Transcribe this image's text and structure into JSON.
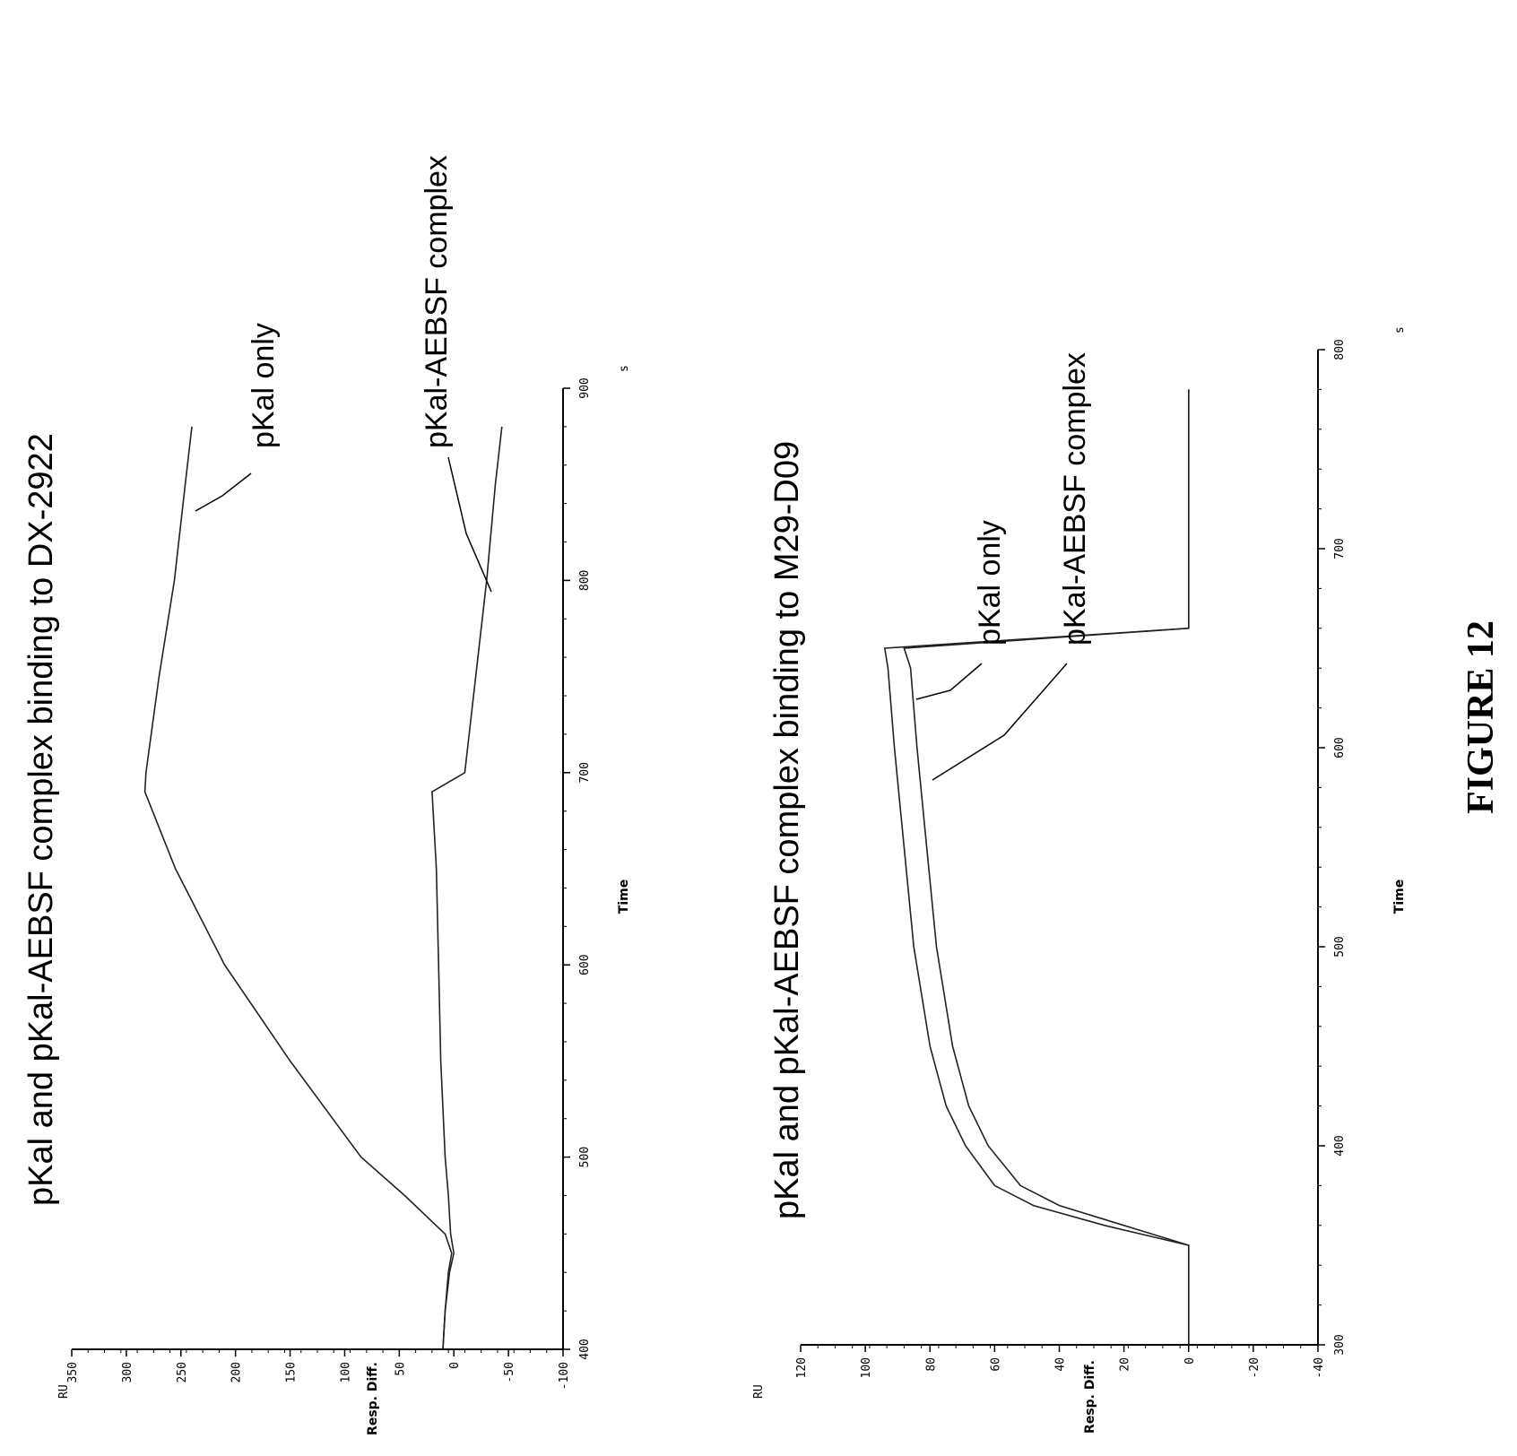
{
  "figure_label": "FIGURE 12",
  "chart_data": [
    {
      "type": "line",
      "title": "pKal and pKal-AEBSF complex binding to DX-2922",
      "xlabel": "Time",
      "x_unit": "s",
      "ylabel": "Resp. Diff.",
      "y_unit": "RU",
      "xlim": [
        400,
        900
      ],
      "ylim": [
        -100,
        350
      ],
      "x_ticks": [
        "400",
        "500",
        "600",
        "700",
        "800",
        "900"
      ],
      "y_ticks": [
        "-100",
        "-50",
        "0",
        "50",
        "100",
        "150",
        "200",
        "250",
        "300",
        "350"
      ],
      "series": [
        {
          "name": "pKal only",
          "x": [
            400,
            420,
            440,
            450,
            460,
            480,
            500,
            550,
            600,
            650,
            690,
            700,
            750,
            800,
            850,
            880
          ],
          "y": [
            10,
            8,
            5,
            2,
            8,
            45,
            85,
            150,
            210,
            255,
            283,
            282,
            270,
            256,
            246,
            240
          ]
        },
        {
          "name": "pKal-AEBSF complex",
          "x": [
            400,
            420,
            440,
            450,
            460,
            480,
            500,
            550,
            600,
            650,
            690,
            700,
            750,
            800,
            850,
            880
          ],
          "y": [
            10,
            8,
            4,
            0,
            3,
            5,
            8,
            12,
            14,
            16,
            20,
            -10,
            -20,
            -30,
            -38,
            -44
          ]
        }
      ],
      "annotations": [
        "pKal only",
        "pKal-AEBSF complex"
      ]
    },
    {
      "type": "line",
      "title": "pKal and pKal-AEBSF complex binding to M29-D09",
      "xlabel": "Time",
      "x_unit": "s",
      "ylabel": "Resp. Diff.",
      "y_unit": "RU",
      "xlim": [
        300,
        800
      ],
      "ylim": [
        -40,
        120
      ],
      "x_ticks": [
        "300",
        "400",
        "500",
        "600",
        "700",
        "800"
      ],
      "y_ticks": [
        "-40",
        "-20",
        "0",
        "20",
        "40",
        "60",
        "80",
        "100",
        "120"
      ],
      "series": [
        {
          "name": "pKal only",
          "x": [
            300,
            320,
            350,
            360,
            370,
            380,
            400,
            420,
            450,
            500,
            550,
            600,
            640,
            650,
            660,
            700,
            750,
            780
          ],
          "y": [
            0,
            0,
            0,
            20,
            40,
            52,
            62,
            68,
            73,
            78,
            81,
            84,
            86,
            88,
            0,
            0,
            0,
            0
          ]
        },
        {
          "name": "pKal-AEBSF complex",
          "x": [
            300,
            320,
            350,
            360,
            370,
            380,
            400,
            420,
            450,
            500,
            550,
            600,
            640,
            650,
            660,
            700,
            750,
            780
          ],
          "y": [
            0,
            0,
            0,
            26,
            48,
            60,
            69,
            75,
            80,
            85,
            88,
            91,
            93,
            94,
            0,
            0,
            0,
            0
          ]
        }
      ],
      "annotations": [
        "pKal only",
        "pKal-AEBSF complex"
      ]
    }
  ]
}
